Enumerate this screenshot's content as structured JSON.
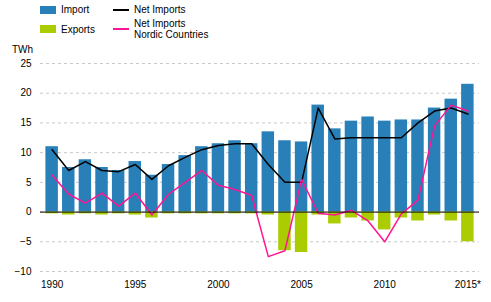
{
  "chart_data": {
    "type": "bar",
    "ylabel": "TWh",
    "categories": [
      "1990",
      null,
      null,
      null,
      null,
      "1995",
      null,
      null,
      null,
      null,
      "2000",
      null,
      null,
      null,
      null,
      "2005",
      null,
      null,
      null,
      null,
      "2010",
      null,
      null,
      null,
      null,
      "2015*"
    ],
    "series": [
      {
        "name": "Import",
        "type": "bar",
        "color": "#2980B9",
        "values": [
          11.0,
          7.5,
          8.8,
          7.5,
          7.0,
          8.5,
          6.2,
          8.0,
          9.5,
          11.0,
          11.5,
          12.0,
          11.5,
          13.5,
          12.0,
          11.8,
          18.0,
          14.0,
          15.3,
          16.0,
          15.3,
          15.5,
          15.5,
          17.5,
          19.0,
          21.5
        ]
      },
      {
        "name": "Exports",
        "type": "bar",
        "color": "#AACC00",
        "values": [
          -0.3,
          -0.5,
          -0.3,
          -0.5,
          -0.3,
          -0.5,
          -1.0,
          -0.3,
          -0.3,
          -0.3,
          -0.3,
          -0.3,
          -0.3,
          -0.5,
          -6.5,
          -6.8,
          -0.5,
          -2.0,
          -1.0,
          -1.5,
          -3.0,
          -1.0,
          -1.5,
          -0.5,
          -1.5,
          -5.0
        ]
      },
      {
        "name": "Net Imports",
        "type": "line",
        "color": "#000000",
        "values": [
          10.5,
          7.0,
          8.5,
          7.0,
          6.8,
          8.0,
          5.5,
          7.8,
          9.2,
          10.5,
          11.2,
          11.5,
          11.5,
          8.0,
          5.0,
          5.0,
          17.5,
          12.3,
          12.5,
          12.5,
          12.5,
          12.5,
          15.0,
          17.0,
          17.5,
          16.5
        ]
      },
      {
        "name": "Net Imports\nNordic Countries",
        "type": "line",
        "color": "#FF1493",
        "values": [
          6.2,
          3.0,
          1.5,
          3.2,
          1.0,
          3.2,
          -0.5,
          3.0,
          5.0,
          7.0,
          4.5,
          3.8,
          2.8,
          -7.5,
          -6.5,
          5.5,
          -0.2,
          -0.5,
          0.3,
          -1.5,
          -5.0,
          -0.3,
          2.0,
          14.5,
          18.0,
          17.0
        ]
      }
    ],
    "ylim": [
      -10,
      25
    ],
    "yticks": [
      -10,
      -5,
      0,
      5,
      10,
      15,
      20,
      25
    ],
    "grid": true,
    "legend": "upper left"
  }
}
